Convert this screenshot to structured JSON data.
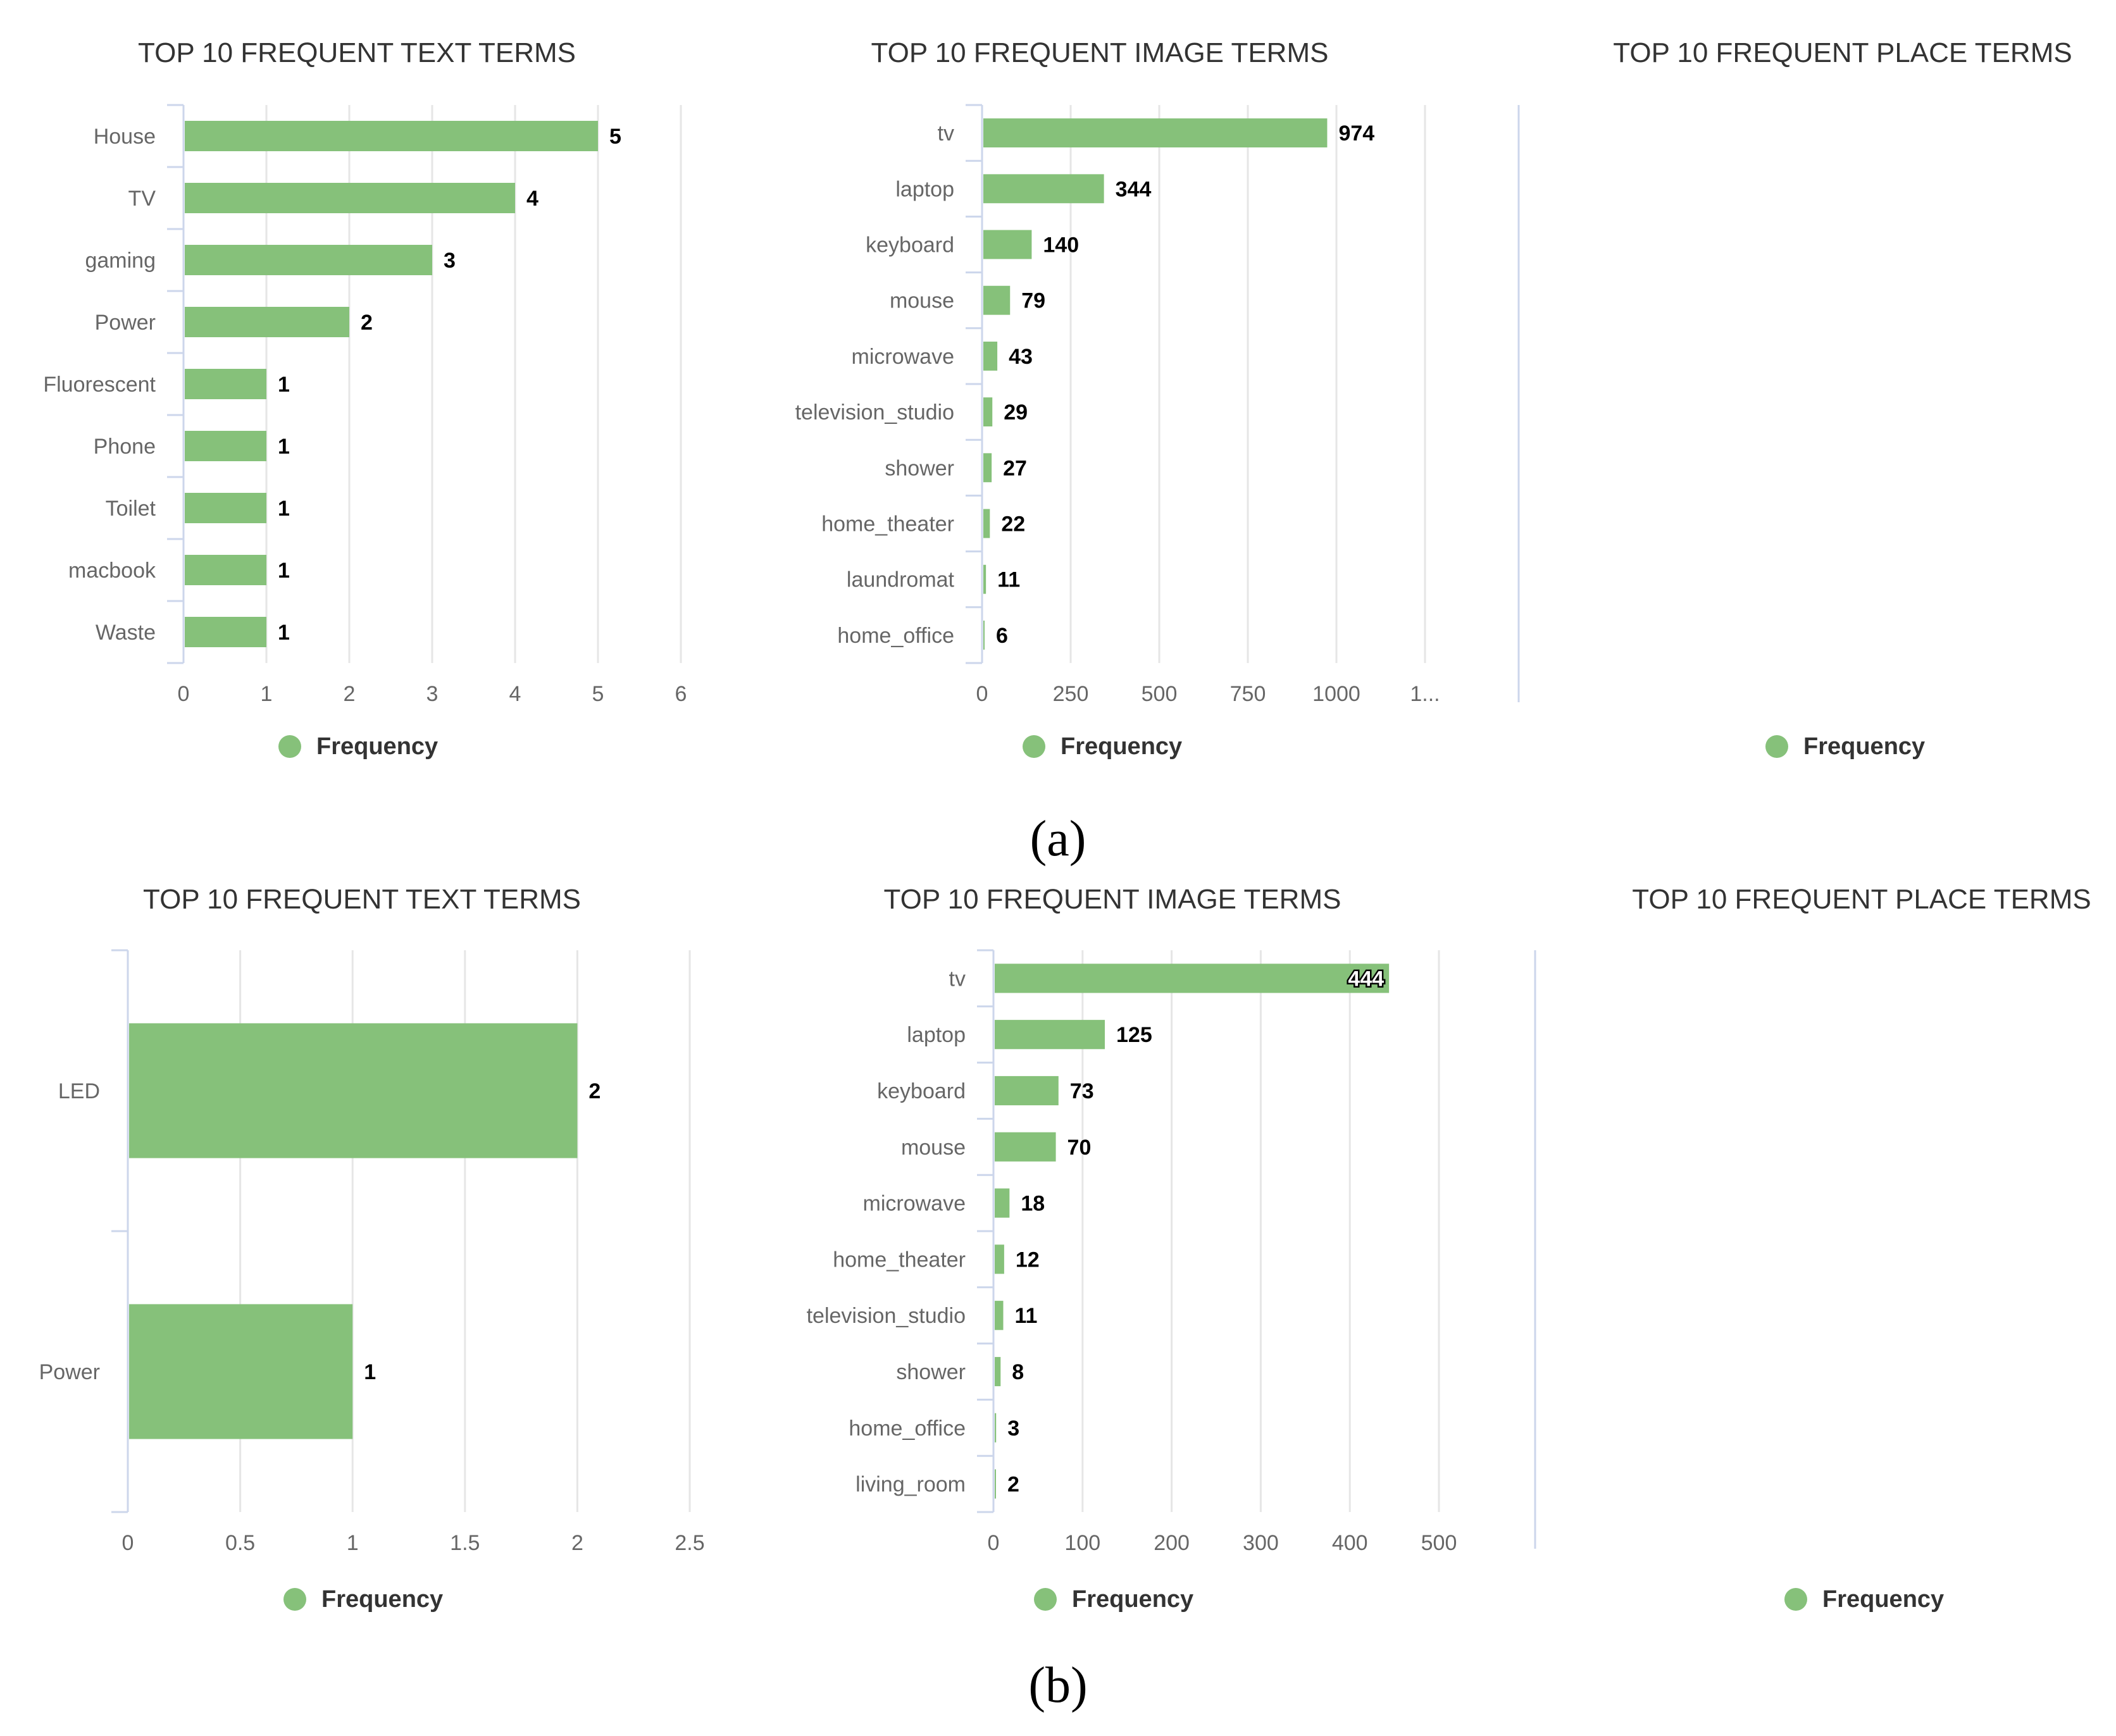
{
  "chart_data": [
    {
      "panel": "(a)",
      "type": "bar",
      "orientation": "horizontal",
      "title": "TOP 10 FREQUENT TEXT TERMS",
      "categories": [
        "House",
        "TV",
        "gaming",
        "Power",
        "Fluorescent",
        "Phone",
        "Toilet",
        "macbook",
        "Waste"
      ],
      "series": [
        {
          "name": "Frequency",
          "values": [
            5,
            4,
            3,
            2,
            1,
            1,
            1,
            1,
            1
          ]
        }
      ],
      "xlim": [
        0,
        6
      ],
      "ticks": [
        "0",
        "1",
        "2",
        "3",
        "4",
        "5",
        "6"
      ],
      "tick_values": [
        0,
        1,
        2,
        3,
        4,
        5,
        6
      ],
      "grid": true,
      "legend": "bottom-center"
    },
    {
      "panel": "(a)",
      "type": "bar",
      "orientation": "horizontal",
      "title": "TOP 10 FREQUENT IMAGE TERMS",
      "categories": [
        "tv",
        "laptop",
        "keyboard",
        "mouse",
        "microwave",
        "television_studio",
        "shower",
        "home_theater",
        "laundromat",
        "home_office"
      ],
      "series": [
        {
          "name": "Frequency",
          "values": [
            974,
            344,
            140,
            79,
            43,
            29,
            27,
            22,
            11,
            6
          ]
        }
      ],
      "xlim": [
        0,
        1250
      ],
      "ticks": [
        "0",
        "250",
        "500",
        "750",
        "1000",
        "1..."
      ],
      "tick_values": [
        0,
        250,
        500,
        750,
        1000,
        1250
      ],
      "grid": true,
      "legend": "bottom-center"
    },
    {
      "panel": "(a)",
      "type": "bar",
      "orientation": "horizontal",
      "title": "TOP 10 FREQUENT PLACE TERMS",
      "categories": [],
      "series": [
        {
          "name": "Frequency",
          "values": []
        }
      ],
      "grid": false,
      "legend": "bottom-center"
    },
    {
      "panel": "(b)",
      "type": "bar",
      "orientation": "horizontal",
      "title": "TOP 10 FREQUENT TEXT TERMS",
      "categories": [
        "LED",
        "Power"
      ],
      "series": [
        {
          "name": "Frequency",
          "values": [
            2,
            1
          ]
        }
      ],
      "xlim": [
        0,
        2.5
      ],
      "ticks": [
        "0",
        "0.5",
        "1",
        "1.5",
        "2",
        "2.5"
      ],
      "tick_values": [
        0,
        0.5,
        1,
        1.5,
        2,
        2.5
      ],
      "grid": true,
      "legend": "bottom-center"
    },
    {
      "panel": "(b)",
      "type": "bar",
      "orientation": "horizontal",
      "title": "TOP 10 FREQUENT IMAGE TERMS",
      "categories": [
        "tv",
        "laptop",
        "keyboard",
        "mouse",
        "microwave",
        "home_theater",
        "television_studio",
        "shower",
        "home_office",
        "living_room"
      ],
      "series": [
        {
          "name": "Frequency",
          "values": [
            444,
            125,
            73,
            70,
            18,
            12,
            11,
            8,
            3,
            2
          ]
        }
      ],
      "xlim": [
        0,
        500
      ],
      "ticks": [
        "0",
        "100",
        "200",
        "300",
        "400",
        "500"
      ],
      "tick_values": [
        0,
        100,
        200,
        300,
        400,
        500
      ],
      "grid": true,
      "legend": "bottom-center",
      "label_inside_first": true
    },
    {
      "panel": "(b)",
      "type": "bar",
      "orientation": "horizontal",
      "title": "TOP 10 FREQUENT PLACE TERMS",
      "categories": [],
      "series": [
        {
          "name": "Frequency",
          "values": []
        }
      ],
      "grid": false,
      "legend": "bottom-center"
    }
  ],
  "captions": [
    "(a)",
    "(b)"
  ],
  "colors": {
    "bar": "#86c17a",
    "grid": "#e6e6e6",
    "axis": "#ccd6eb"
  }
}
